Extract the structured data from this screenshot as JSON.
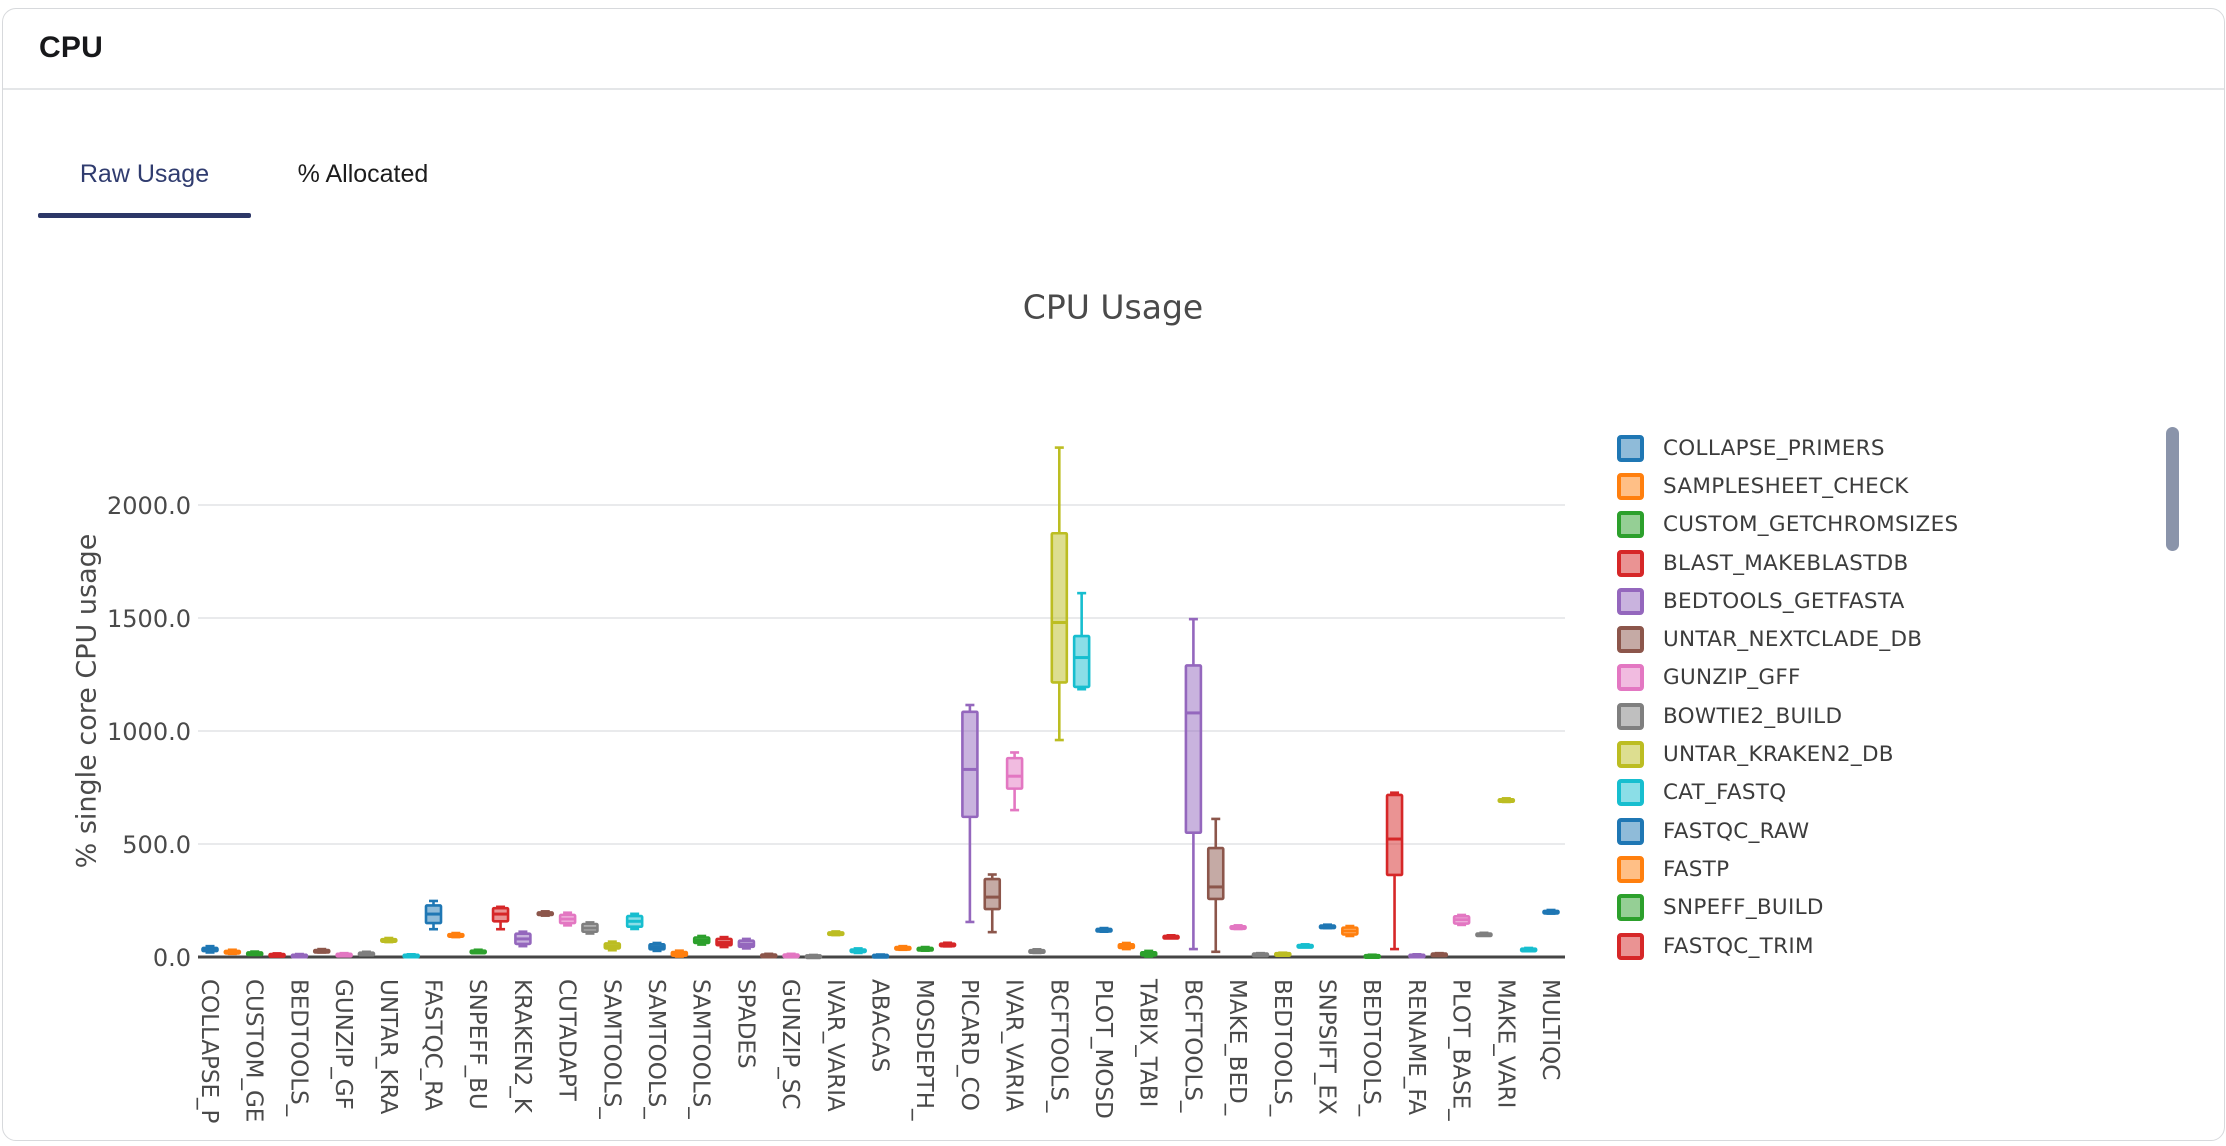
{
  "card": {
    "title": "CPU"
  },
  "tabs": [
    {
      "label": "Raw Usage",
      "active": true
    },
    {
      "label": "% Allocated",
      "active": false
    }
  ],
  "theme": {
    "tab_active_color": "#303c6f",
    "tab_underline_color": "#2c3767",
    "card_border": "#d7d9dc",
    "axis_line_color": "#454545",
    "grid_color": "#e9eaec",
    "tick_text_color": "#4a4a4a",
    "scrollbar_color": "#8a94aa"
  },
  "chart_data": {
    "type": "box",
    "title": "CPU Usage",
    "ylabel": "% single core CPU usage",
    "xlabel": "",
    "grid": true,
    "legend_position": "right",
    "ylim": [
      0,
      2290
    ],
    "yticks": [
      0,
      500,
      1000,
      1500,
      2000
    ],
    "ytick_labels": [
      "0.0",
      "500.0",
      "1000.0",
      "1500.0",
      "2000.0"
    ],
    "palette": [
      "#1f77b4",
      "#ff7f0e",
      "#2ca02c",
      "#d62728",
      "#9467bd",
      "#8c564b",
      "#e377c2",
      "#7f7f7f",
      "#bcbd22",
      "#17becf"
    ],
    "legend_items": [
      "COLLAPSE_PRIMERS",
      "SAMPLESHEET_CHECK",
      "CUSTOM_GETCHROMSIZES",
      "BLAST_MAKEBLASTDB",
      "BEDTOOLS_GETFASTA",
      "UNTAR_NEXTCLADE_DB",
      "GUNZIP_GFF",
      "BOWTIE2_BUILD",
      "UNTAR_KRAKEN2_DB",
      "CAT_FASTQ",
      "FASTQC_RAW",
      "FASTP",
      "SNPEFF_BUILD",
      "FASTQC_TRIM"
    ],
    "box_stats_order": [
      "min",
      "q1",
      "median",
      "q3",
      "max"
    ],
    "boxes": [
      {
        "tick": "COLLAPSE_P",
        "values": [
          20,
          26,
          33,
          40,
          48
        ]
      },
      {
        "tick": "",
        "values": [
          14,
          19,
          23,
          27,
          32
        ]
      },
      {
        "tick": "CUSTOM_GE",
        "values": [
          10,
          14,
          17,
          20,
          24
        ]
      },
      {
        "tick": "",
        "values": [
          5,
          8,
          10,
          13,
          16
        ]
      },
      {
        "tick": "BEDTOOLS_",
        "values": [
          4,
          6,
          8,
          10,
          13
        ]
      },
      {
        "tick": "",
        "values": [
          20,
          24,
          27,
          31,
          35
        ]
      },
      {
        "tick": "GUNZIP_GF",
        "values": [
          6,
          9,
          11,
          14,
          17
        ]
      },
      {
        "tick": "",
        "values": [
          10,
          13,
          16,
          19,
          23
        ]
      },
      {
        "tick": "UNTAR_KRA",
        "values": [
          66,
          71,
          75,
          79,
          84
        ]
      },
      {
        "tick": "",
        "values": [
          4,
          6,
          8,
          10,
          12
        ]
      },
      {
        "tick": "FASTQC_RA",
        "values": [
          123,
          150,
          190,
          228,
          248
        ]
      },
      {
        "tick": "",
        "values": [
          88,
          93,
          97,
          101,
          106
        ]
      },
      {
        "tick": "SNPEFF_BU",
        "values": [
          18,
          22,
          25,
          28,
          32
        ]
      },
      {
        "tick": "",
        "values": [
          123,
          158,
          190,
          216,
          222
        ]
      },
      {
        "tick": "KRAKEN2_K",
        "values": [
          48,
          58,
          80,
          103,
          112
        ]
      },
      {
        "tick": "",
        "values": [
          183,
          188,
          192,
          197,
          202
        ]
      },
      {
        "tick": "CUTADAPT",
        "values": [
          140,
          150,
          168,
          186,
          196
        ]
      },
      {
        "tick": "",
        "values": [
          104,
          112,
          128,
          146,
          153
        ]
      },
      {
        "tick": "SAMTOOLS_",
        "values": [
          30,
          38,
          48,
          60,
          68
        ]
      },
      {
        "tick": "",
        "values": [
          124,
          134,
          158,
          181,
          191
        ]
      },
      {
        "tick": "SAMTOOLS_",
        "values": [
          27,
          34,
          44,
          56,
          62
        ]
      },
      {
        "tick": "",
        "values": [
          2,
          6,
          13,
          22,
          28
        ]
      },
      {
        "tick": "SAMTOOLS_",
        "values": [
          55,
          62,
          73,
          86,
          93
        ]
      },
      {
        "tick": "",
        "values": [
          44,
          52,
          64,
          80,
          88
        ]
      },
      {
        "tick": "SPADES",
        "values": [
          38,
          45,
          57,
          72,
          80
        ]
      },
      {
        "tick": "",
        "values": [
          2,
          5,
          8,
          11,
          14
        ]
      },
      {
        "tick": "GUNZIP_SC",
        "values": [
          2,
          5,
          8,
          11,
          14
        ]
      },
      {
        "tick": "",
        "values": [
          1,
          3,
          5,
          7,
          9
        ]
      },
      {
        "tick": "IVAR_VARIA",
        "values": [
          97,
          101,
          105,
          109,
          113
        ]
      },
      {
        "tick": "",
        "values": [
          18,
          23,
          28,
          33,
          38
        ]
      },
      {
        "tick": "ABACAS",
        "values": [
          3,
          5,
          7,
          9,
          11
        ]
      },
      {
        "tick": "",
        "values": [
          32,
          36,
          40,
          44,
          48
        ]
      },
      {
        "tick": "MOSDEPTH_",
        "values": [
          28,
          32,
          36,
          40,
          44
        ]
      },
      {
        "tick": "",
        "values": [
          47,
          51,
          55,
          59,
          63
        ]
      },
      {
        "tick": "PICARD_CO",
        "values": [
          155,
          620,
          830,
          1085,
          1115
        ]
      },
      {
        "tick": "",
        "values": [
          110,
          212,
          265,
          345,
          365
        ]
      },
      {
        "tick": "IVAR_VARIA",
        "values": [
          650,
          745,
          800,
          880,
          905
        ]
      },
      {
        "tick": "",
        "values": [
          18,
          22,
          26,
          30,
          34
        ]
      },
      {
        "tick": "BCFTOOLS_",
        "values": [
          960,
          1215,
          1480,
          1875,
          2254
        ]
      },
      {
        "tick": "",
        "values": [
          1185,
          1195,
          1325,
          1420,
          1610
        ]
      },
      {
        "tick": "PLOT_MOSD",
        "values": [
          112,
          116,
          120,
          124,
          128
        ]
      },
      {
        "tick": "",
        "values": [
          35,
          40,
          48,
          56,
          62
        ]
      },
      {
        "tick": "TABIX_TABI",
        "values": [
          2,
          7,
          14,
          21,
          27
        ]
      },
      {
        "tick": "",
        "values": [
          84,
          87,
          90,
          93,
          96
        ]
      },
      {
        "tick": "BCFTOOLS_",
        "values": [
          35,
          550,
          1080,
          1290,
          1495
        ]
      },
      {
        "tick": "",
        "values": [
          23,
          257,
          310,
          482,
          611
        ]
      },
      {
        "tick": "MAKE_BED_",
        "values": [
          124,
          128,
          132,
          136,
          140
        ]
      },
      {
        "tick": "",
        "values": [
          9,
          11,
          13,
          15,
          17
        ]
      },
      {
        "tick": "BEDTOOLS_",
        "values": [
          11,
          13,
          15,
          17,
          19
        ]
      },
      {
        "tick": "",
        "values": [
          44,
          47,
          50,
          53,
          56
        ]
      },
      {
        "tick": "SNPSIFT_EX",
        "values": [
          128,
          131,
          135,
          139,
          143
        ]
      },
      {
        "tick": "",
        "values": [
          93,
          100,
          115,
          130,
          137
        ]
      },
      {
        "tick": "BEDTOOLS_",
        "values": [
          2,
          4,
          6,
          8,
          10
        ]
      },
      {
        "tick": "",
        "values": [
          35,
          363,
          522,
          717,
          727
        ]
      },
      {
        "tick": "RENAME_FA",
        "values": [
          4,
          6,
          8,
          10,
          12
        ]
      },
      {
        "tick": "",
        "values": [
          9,
          11,
          13,
          15,
          17
        ]
      },
      {
        "tick": "PLOT_BASE_",
        "values": [
          142,
          148,
          165,
          180,
          186
        ]
      },
      {
        "tick": "",
        "values": [
          95,
          98,
          101,
          104,
          107
        ]
      },
      {
        "tick": "MAKE_VARI",
        "values": [
          686,
          690,
          694,
          698,
          702
        ]
      },
      {
        "tick": "",
        "values": [
          28,
          31,
          34,
          37,
          40
        ]
      },
      {
        "tick": "MULTIQC",
        "values": [
          192,
          196,
          200,
          204,
          208
        ]
      }
    ]
  }
}
